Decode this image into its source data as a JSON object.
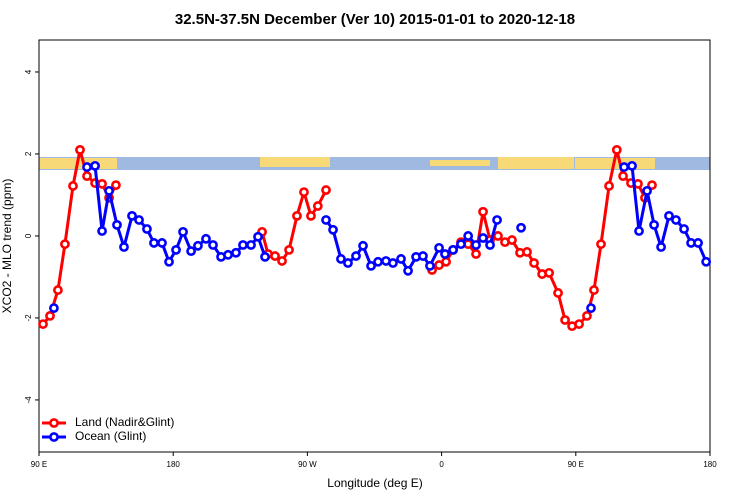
{
  "chart_data": {
    "type": "line",
    "title": "32.5N-37.5N December (Ver 10)   2015-01-01 to 2020-12-18",
    "xlabel": "Longitude (deg E)",
    "ylabel": "XCO2 - MLO trend (ppm)",
    "xlim": [
      90,
      540
    ],
    "ylim": [
      -5.27,
      4.78
    ],
    "xticks": [
      {
        "value": 90,
        "label": "90 E"
      },
      {
        "value": 180,
        "label": "180"
      },
      {
        "value": 270,
        "label": "90 W"
      },
      {
        "value": 360,
        "label": "0"
      },
      {
        "value": 450,
        "label": "90 E"
      },
      {
        "value": 540,
        "label": "180"
      }
    ],
    "yticks": [
      -4,
      -2,
      0,
      2,
      4
    ],
    "legend": "bottom-left",
    "series": [
      {
        "name": "Land (Nadir&Glint)",
        "color": "#ff0000",
        "x": [
          92.7,
          97.4,
          102.7,
          107.4,
          112.8,
          117.5,
          122.2,
          127.6,
          132.3,
          137,
          141.6,
          null,
          239.6,
          243.6,
          248.3,
          253,
          257.7,
          263,
          267.7,
          272.4,
          277,
          282.5,
          null,
          353.6,
          358.3,
          363,
          367.7,
          373,
          377.8,
          383.1,
          387.8,
          392.5,
          397.8,
          402.5,
          407.2,
          412.6,
          417.3,
          422,
          427.4,
          432.1,
          438.1,
          442.8,
          447.5,
          452.2,
          457.5,
          462.2,
          466.9,
          472.3,
          477.5,
          481.7,
          487,
          491.7,
          496.4,
          501.1
        ],
        "values": [
          -2.15,
          -1.95,
          -1.32,
          -0.2,
          1.22,
          2.1,
          1.46,
          1.29,
          1.27,
          0.93,
          1.24,
          null,
          0.1,
          -0.44,
          -0.49,
          -0.61,
          -0.34,
          0.49,
          1.07,
          0.49,
          0.73,
          1.12,
          null,
          -0.83,
          -0.71,
          -0.63,
          -0.34,
          -0.15,
          -0.2,
          -0.44,
          0.59,
          -0.1,
          0,
          -0.15,
          -0.1,
          -0.41,
          -0.39,
          -0.66,
          -0.93,
          -0.9,
          -1.39,
          -2.05,
          -2.2,
          -2.15,
          -1.95,
          -1.32,
          -0.2,
          1.22,
          2.1,
          1.46,
          1.29,
          1.27,
          0.93,
          1.24
        ]
      },
      {
        "name": "Ocean (Glint)",
        "color": "#0000ff",
        "x": [
          100,
          null,
          122.2,
          127.6,
          132.3,
          137,
          142.3,
          147,
          152.4,
          157.1,
          162.4,
          167.1,
          172.5,
          177.2,
          181.9,
          186.6,
          192,
          196.6,
          202,
          206.7,
          212.1,
          216.8,
          222.1,
          226.8,
          232.2,
          236.9,
          241.6,
          null,
          282.5,
          287.2,
          292.5,
          297.2,
          302.6,
          307.3,
          312.7,
          317.4,
          322.7,
          327.4,
          332.8,
          337.5,
          342.9,
          347.5,
          352.2,
          358.3,
          362.3,
          367.7,
          373,
          377.8,
          383.1,
          387.8,
          392.5,
          397.2,
          null,
          413.3,
          null,
          460.2,
          null,
          482.4,
          487.7,
          492.4,
          497.8,
          502.5,
          507.2,
          512.5,
          517.2,
          522.6,
          527.3,
          532,
          537.4
        ],
        "values": [
          -1.76,
          null,
          1.68,
          1.71,
          0.12,
          1.1,
          0.27,
          -0.27,
          0.49,
          0.39,
          0.17,
          -0.17,
          -0.17,
          -0.63,
          -0.34,
          0.1,
          -0.37,
          -0.24,
          -0.07,
          -0.22,
          -0.51,
          -0.46,
          -0.41,
          -0.22,
          -0.22,
          -0.02,
          -0.51,
          null,
          0.39,
          0.15,
          -0.56,
          -0.66,
          -0.49,
          -0.24,
          -0.73,
          -0.63,
          -0.61,
          -0.66,
          -0.56,
          -0.85,
          -0.51,
          -0.49,
          -0.73,
          -0.29,
          -0.44,
          -0.34,
          -0.2,
          0,
          -0.22,
          -0.05,
          -0.22,
          0.39,
          null,
          0.2,
          null,
          -1.76,
          null,
          1.68,
          1.71,
          0.12,
          1.1,
          0.27,
          -0.27,
          0.49,
          0.39,
          0.17,
          -0.17,
          -0.17,
          -0.63
        ]
      }
    ]
  }
}
